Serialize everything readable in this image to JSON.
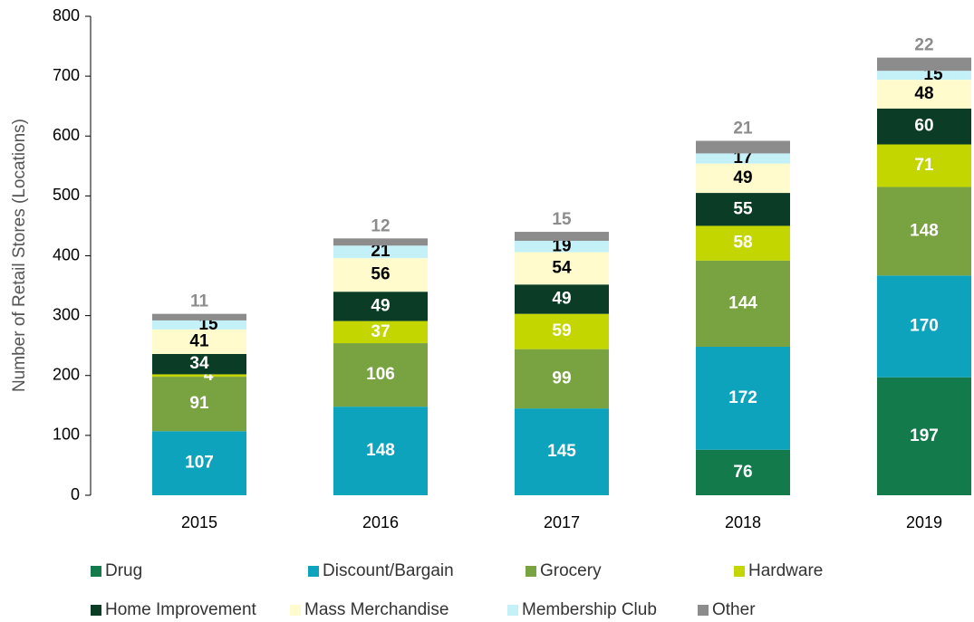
{
  "chart_data": {
    "type": "stacked_bar",
    "y_label": "Number of Retail Stores (Locations)",
    "categories": [
      "2015",
      "2016",
      "2017",
      "2018",
      "2019"
    ],
    "series": [
      {
        "name": "Drug",
        "color": "#137a4c",
        "values": [
          null,
          null,
          null,
          76,
          197
        ]
      },
      {
        "name": "Discount/Bargain",
        "color": "#0ea3bd",
        "values": [
          107,
          148,
          145,
          172,
          170
        ]
      },
      {
        "name": "Grocery",
        "color": "#79a240",
        "values": [
          91,
          106,
          99,
          144,
          148
        ]
      },
      {
        "name": "Hardware",
        "color": "#c3d600",
        "values": [
          4,
          37,
          59,
          58,
          71
        ]
      },
      {
        "name": "Home Improvement",
        "color": "#0b3d26",
        "values": [
          34,
          49,
          49,
          55,
          60
        ]
      },
      {
        "name": "Mass Merchandise",
        "color": "#fffbcc",
        "values": [
          41,
          56,
          54,
          49,
          48
        ]
      },
      {
        "name": "Membership Club",
        "color": "#c4f0f7",
        "values": [
          15,
          21,
          19,
          17,
          15
        ]
      },
      {
        "name": "Other",
        "color": "#8c8c8c",
        "values": [
          11,
          12,
          15,
          21,
          22
        ]
      }
    ],
    "ylim": [
      0,
      800
    ],
    "yticks": [
      0,
      100,
      200,
      300,
      400,
      500,
      600,
      700,
      800
    ]
  }
}
